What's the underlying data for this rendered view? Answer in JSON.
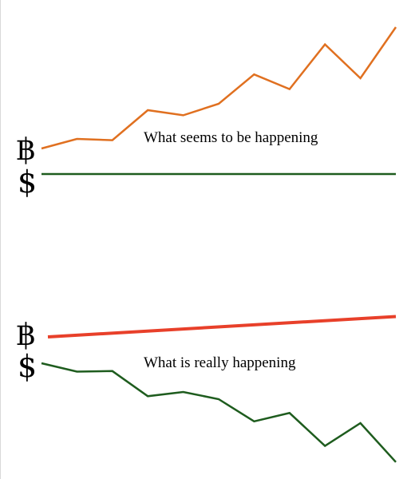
{
  "chart_data": [
    {
      "type": "line",
      "title": "",
      "annotation": "What seems to be happening",
      "series": [
        {
          "name": "฿",
          "color": "#e07020",
          "values": [
            [
              0,
              4.0
            ],
            [
              1,
              5.5
            ],
            [
              2,
              5.3
            ],
            [
              3,
              10.0
            ],
            [
              4,
              9.2
            ],
            [
              5,
              11.0
            ],
            [
              6,
              15.6
            ],
            [
              7,
              13.3
            ],
            [
              8,
              20.3
            ],
            [
              9,
              15.0
            ],
            [
              10,
              23.0
            ]
          ]
        },
        {
          "name": "$",
          "color": "#1e5c1e",
          "values": [
            [
              0,
              0
            ],
            [
              10,
              0
            ]
          ]
        }
      ]
    },
    {
      "type": "line",
      "title": "",
      "annotation": "What is really happening",
      "series": [
        {
          "name": "฿",
          "color": "#e8402a",
          "values": [
            [
              0,
              0
            ],
            [
              10,
              3.4
            ]
          ]
        },
        {
          "name": "$",
          "color": "#1e5c1e",
          "values": [
            [
              0,
              0
            ],
            [
              1,
              -1.4
            ],
            [
              2,
              -1.3
            ],
            [
              3,
              -5.5
            ],
            [
              4,
              -4.8
            ],
            [
              5,
              -6.0
            ],
            [
              6,
              -9.7
            ],
            [
              7,
              -8.3
            ],
            [
              8,
              -13.8
            ],
            [
              9,
              -10.0
            ],
            [
              10,
              -16.5
            ]
          ]
        }
      ]
    }
  ]
}
